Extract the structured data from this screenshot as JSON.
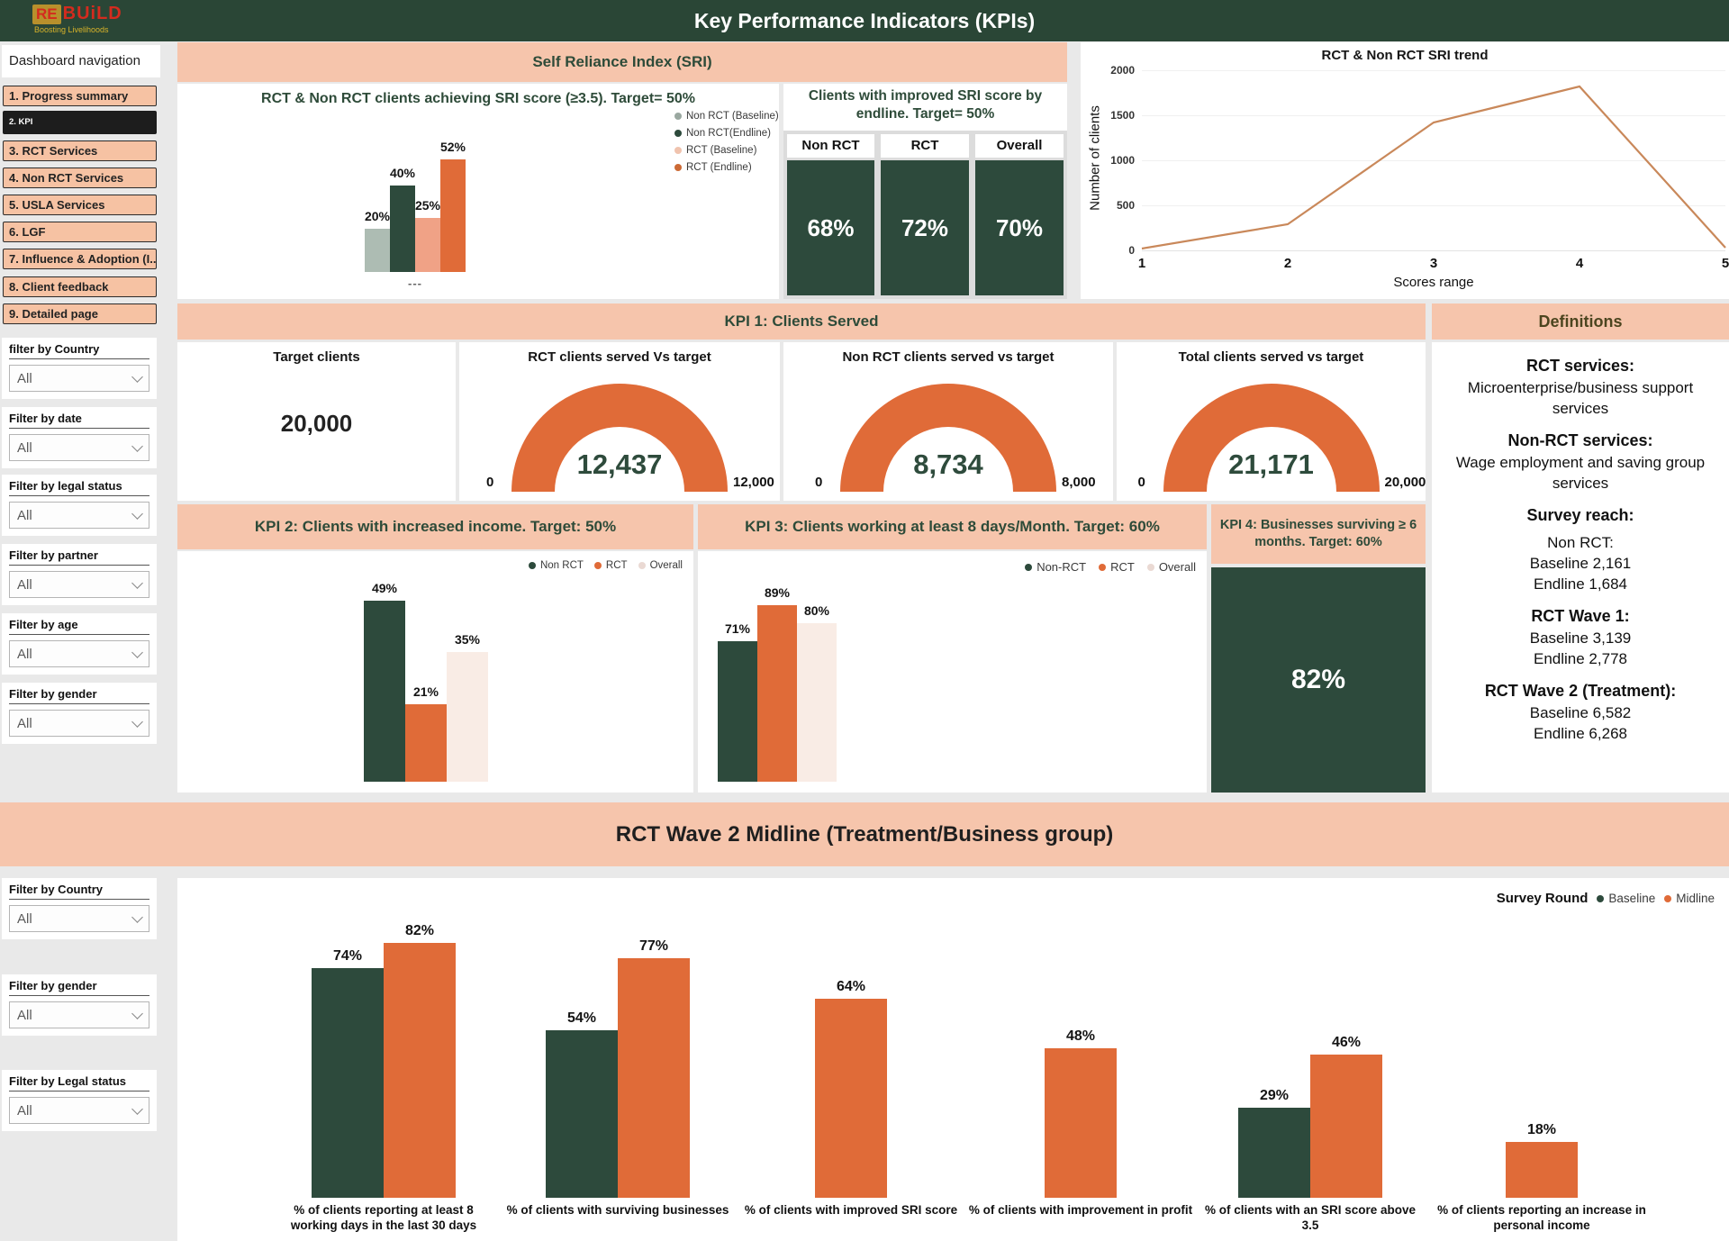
{
  "header": {
    "title": "Key Performance Indicators (KPIs)",
    "logo": {
      "re": "RE",
      "build": "BUiLD",
      "tagline": "Boosting Livelihoods"
    }
  },
  "sections": {
    "sri_banner": "Self Reliance Index (SRI)",
    "kpi1_banner": "KPI 1: Clients Served",
    "definitions_title": "Definitions"
  },
  "sidebar": {
    "title": "Dashboard navigation",
    "items": [
      {
        "label": "1. Progress summary"
      },
      {
        "label": "2. KPI",
        "active": true
      },
      {
        "label": "3. RCT Services"
      },
      {
        "label": "4. Non RCT Services"
      },
      {
        "label": "5. USLA Services"
      },
      {
        "label": "6. LGF"
      },
      {
        "label": "7. Influence & Adoption (I..."
      },
      {
        "label": "8. Client feedback"
      },
      {
        "label": "9. Detailed page"
      }
    ],
    "filters": [
      {
        "label": "filter by Country",
        "value": "All"
      },
      {
        "label": "Filter by date",
        "value": "All"
      },
      {
        "label": "Filter by legal status",
        "value": "All"
      },
      {
        "label": "Filter by partner",
        "value": "All"
      },
      {
        "label": "Filter by age",
        "value": "All"
      },
      {
        "label": "Filter by gender",
        "value": "All"
      }
    ],
    "bottom_filters": [
      {
        "label": "Filter by Country",
        "value": "All"
      },
      {
        "label": "Filter by gender",
        "value": "All"
      },
      {
        "label": "Filter by Legal status",
        "value": "All"
      }
    ]
  },
  "definitions": {
    "lines": [
      {
        "text": "RCT services:"
      },
      {
        "text": "Microenterprise/business support services"
      },
      {
        "text": "Non-RCT services:"
      },
      {
        "text": "Wage employment and saving group services"
      },
      {
        "text": "Survey reach:"
      },
      {
        "text": "Non RCT:"
      },
      {
        "text": "Baseline 2,161"
      },
      {
        "text": "Endline 1,684"
      },
      {
        "text": "RCT Wave 1:"
      },
      {
        "text": "Baseline 3,139"
      },
      {
        "text": "Endline  2,778"
      },
      {
        "text": "RCT Wave 2 (Treatment):"
      },
      {
        "text": "Baseline 6,582"
      },
      {
        "text": "Endline  6,268"
      }
    ]
  },
  "colors": {
    "header_green": "#2a4636",
    "dark_green": "#2d4a3c",
    "orange": "#e06b38",
    "salmon": "#f6c5ac",
    "nav_salmon": "#f6c2a3",
    "baseline_gray": "#adbcb3",
    "rct_baseline_peach": "#f0a286",
    "overall_blush": "#f9ece5",
    "trend_line": "#c9885a",
    "active_black": "#1d1d1d",
    "background": "#e9e9e9"
  },
  "chart_data": [
    {
      "id": "sri_achieving_bar",
      "type": "bar",
      "title": "RCT & Non RCT clients achieving SRI score (≥3.5). Target= 50%",
      "categories": [
        "---"
      ],
      "unit": "%",
      "series": [
        {
          "name": "Non RCT (Baseline)",
          "value": 20,
          "label": "20%",
          "color": "#adbcb3"
        },
        {
          "name": "Non RCT(Endline)",
          "value": 40,
          "label": "40%",
          "color": "#2d4a3c"
        },
        {
          "name": "RCT (Baseline)",
          "value": 25,
          "label": "25%",
          "color": "#f0a286"
        },
        {
          "name": "RCT (Endline)",
          "value": 52,
          "label": "52%",
          "color": "#e06b38"
        }
      ]
    },
    {
      "id": "improved_sri_by_endline",
      "type": "table",
      "title": "Clients with improved SRI score by endline. Target= 50%",
      "columns": [
        {
          "name": "Non RCT",
          "value": 68,
          "label": "68%"
        },
        {
          "name": "RCT",
          "value": 72,
          "label": "72%"
        },
        {
          "name": "Overall",
          "value": 70,
          "label": "70%"
        }
      ]
    },
    {
      "id": "sri_trend",
      "type": "line",
      "title": "RCT & Non RCT SRI trend",
      "xlabel": "Scores range",
      "ylabel": "Number of clients",
      "x": [
        1,
        2,
        3,
        4,
        5
      ],
      "values": [
        20,
        290,
        1420,
        1820,
        30
      ],
      "xlim": [
        1,
        5
      ],
      "ylim": [
        0,
        2000
      ],
      "yticks": [
        0,
        500,
        1000,
        1500,
        2000
      ],
      "line_color": "#c9885a",
      "grid": true,
      "legend_position": "none"
    },
    {
      "id": "target_clients",
      "type": "card",
      "title": "Target clients",
      "value": 20000,
      "label": "20,000"
    },
    {
      "id": "rct_served_gauge",
      "type": "gauge",
      "title": "RCT clients served Vs target",
      "value": 12437,
      "label": "12,437",
      "min": 0,
      "max": 12000,
      "min_label": "0",
      "max_label": "12,000"
    },
    {
      "id": "nonrct_served_gauge",
      "type": "gauge",
      "title": "Non RCT clients served vs target",
      "value": 8734,
      "label": "8,734",
      "min": 0,
      "max": 8000,
      "min_label": "0",
      "max_label": "8,000"
    },
    {
      "id": "total_served_gauge",
      "type": "gauge",
      "title": "Total clients served vs target",
      "value": 21171,
      "label": "21,171",
      "min": 0,
      "max": 20000,
      "min_label": "0",
      "max_label": "20,000"
    },
    {
      "id": "kpi2_increased_income",
      "type": "bar",
      "title": "KPI 2: Clients with increased income. Target: 50%",
      "series": [
        {
          "name": "Non RCT",
          "value": 49,
          "label": "49%",
          "color": "#2d4a3c"
        },
        {
          "name": "RCT",
          "value": 21,
          "label": "21%",
          "color": "#e06b38"
        },
        {
          "name": "Overall",
          "value": 35,
          "label": "35%",
          "color": "#f9ece5"
        }
      ]
    },
    {
      "id": "kpi3_working_days",
      "type": "bar",
      "title": "KPI 3: Clients working at least 8 days/Month. Target: 60%",
      "series": [
        {
          "name": "Non-RCT",
          "value": 71,
          "label": "71%",
          "color": "#2d4a3c"
        },
        {
          "name": "RCT",
          "value": 89,
          "label": "89%",
          "color": "#e06b38"
        },
        {
          "name": "Overall",
          "value": 80,
          "label": "80%",
          "color": "#f9ece5"
        }
      ]
    },
    {
      "id": "kpi4_surviving",
      "type": "card",
      "title": "KPI 4: Businesses surviving ≥ 6 months. Target: 60%",
      "value": 82,
      "label": "82%"
    },
    {
      "id": "wave2_midline",
      "type": "bar",
      "title": "RCT Wave 2 Midline (Treatment/Business group)",
      "legend_title": "Survey Round",
      "series_names": [
        "Baseline",
        "Midline"
      ],
      "groups": [
        {
          "label": "% of clients reporting at least 8 working days in the last 30 days",
          "baseline": 74,
          "baseline_label": "74%",
          "midline": 82,
          "midline_label": "82%"
        },
        {
          "label": "% of clients with surviving businesses",
          "baseline": 54,
          "baseline_label": "54%",
          "midline": 77,
          "midline_label": "77%"
        },
        {
          "label": "% of clients with improved SRI score",
          "midline": 64,
          "midline_label": "64%"
        },
        {
          "label": "% of clients with improvement in profit",
          "midline": 48,
          "midline_label": "48%"
        },
        {
          "label": "% of clients with an SRI score above 3.5",
          "baseline": 29,
          "baseline_label": "29%",
          "midline": 46,
          "midline_label": "46%"
        },
        {
          "label": "% of clients reporting an increase in personal income",
          "midline": 18,
          "midline_label": "18%"
        }
      ]
    }
  ]
}
